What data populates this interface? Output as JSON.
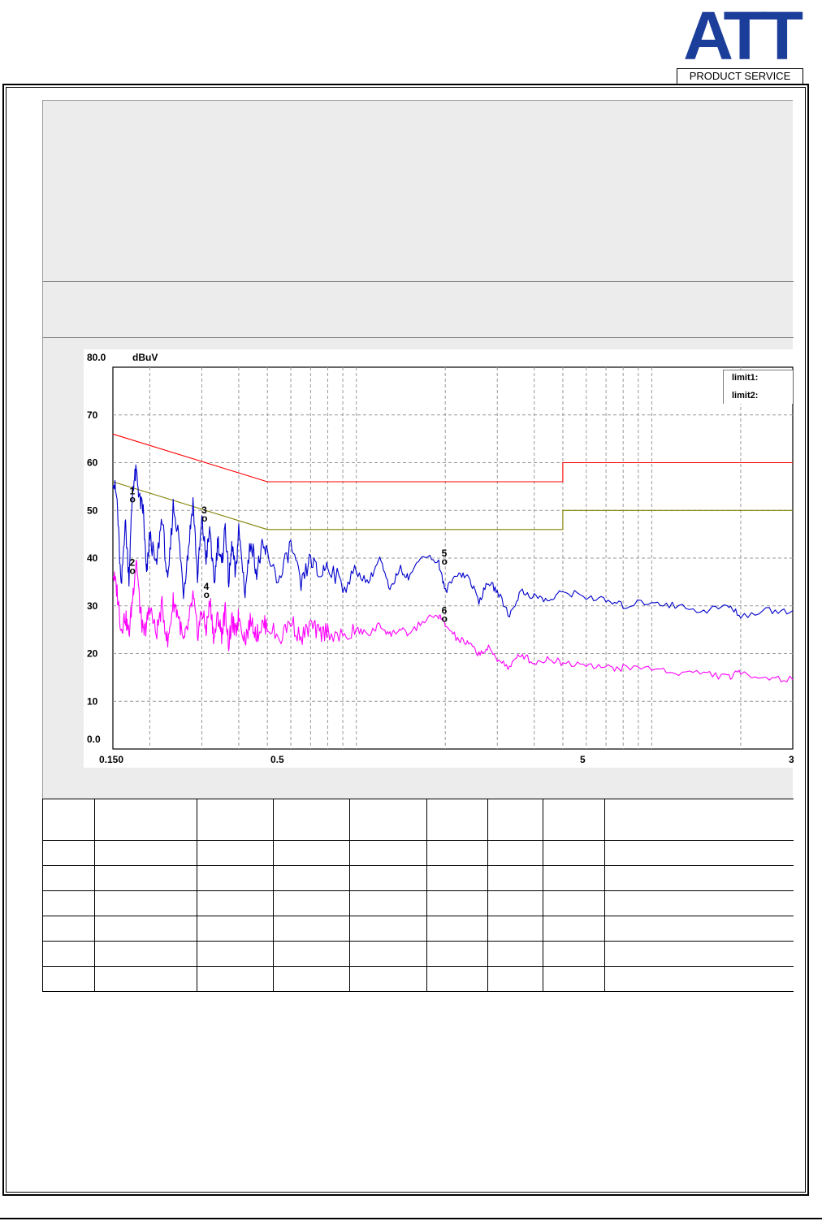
{
  "logo": {
    "mark": "ATT",
    "subtitle": "PRODUCT SERVICE"
  },
  "chart_data": {
    "type": "line",
    "xscale": "log",
    "x_tick_labels": [
      "0.150",
      "0.5",
      "5",
      "3"
    ],
    "y_top_label": "80.0",
    "y_unit": "dBuV",
    "y_tick_labels": [
      "70",
      "60",
      "50",
      "40",
      "30",
      "20",
      "10",
      "0.0"
    ],
    "ylim": [
      0,
      80
    ],
    "xlim": [
      0.15,
      30
    ],
    "grid": true,
    "legend_position": "top-right",
    "legend": [
      "limit1:",
      "limit2:"
    ],
    "series": [
      {
        "name": "limit1:",
        "color": "#ff0000",
        "x": [
          0.15,
          0.5,
          5,
          5,
          30
        ],
        "y": [
          66,
          56,
          56,
          60,
          60
        ]
      },
      {
        "name": "limit2:",
        "color": "#808000",
        "x": [
          0.15,
          0.5,
          5,
          5,
          30
        ],
        "y": [
          56,
          46,
          46,
          50,
          50
        ]
      },
      {
        "color": "#0000cc",
        "x": [
          0.15,
          0.155,
          0.16,
          0.165,
          0.17,
          0.175,
          0.18,
          0.185,
          0.19,
          0.195,
          0.2,
          0.21,
          0.22,
          0.23,
          0.24,
          0.25,
          0.26,
          0.27,
          0.28,
          0.29,
          0.3,
          0.31,
          0.32,
          0.33,
          0.34,
          0.35,
          0.36,
          0.37,
          0.38,
          0.39,
          0.4,
          0.42,
          0.44,
          0.46,
          0.48,
          0.5,
          0.55,
          0.6,
          0.65,
          0.7,
          0.75,
          0.8,
          0.9,
          1.0,
          1.1,
          1.2,
          1.3,
          1.4,
          1.5,
          1.7,
          1.9,
          2.0,
          2.2,
          2.4,
          2.6,
          2.8,
          3.0,
          3.3,
          3.6,
          4.0,
          4.5,
          5.0,
          6,
          7,
          8,
          10,
          12,
          15,
          18,
          20,
          25,
          30
        ],
        "y": [
          57,
          52,
          33,
          48,
          36,
          55,
          58,
          52,
          50,
          36,
          45,
          38,
          49,
          34,
          51,
          45,
          33,
          42,
          52,
          36,
          48,
          40,
          46,
          34,
          44,
          38,
          47,
          35,
          43,
          36,
          46,
          33,
          44,
          37,
          42,
          41,
          35,
          43,
          34,
          40,
          36,
          39,
          34,
          37,
          35,
          40,
          33,
          38,
          36,
          41,
          39,
          33,
          37,
          36,
          31,
          35,
          33,
          28,
          33,
          32,
          31,
          33,
          32,
          31,
          30,
          31,
          30,
          29,
          30,
          28,
          29,
          29
        ]
      },
      {
        "color": "#ff00ff",
        "x": [
          0.15,
          0.155,
          0.16,
          0.165,
          0.17,
          0.175,
          0.18,
          0.185,
          0.19,
          0.195,
          0.2,
          0.21,
          0.22,
          0.23,
          0.24,
          0.25,
          0.26,
          0.27,
          0.28,
          0.29,
          0.3,
          0.31,
          0.32,
          0.33,
          0.34,
          0.35,
          0.36,
          0.37,
          0.38,
          0.39,
          0.4,
          0.42,
          0.44,
          0.46,
          0.48,
          0.5,
          0.55,
          0.6,
          0.65,
          0.7,
          0.75,
          0.8,
          0.9,
          1.0,
          1.1,
          1.2,
          1.3,
          1.4,
          1.5,
          1.7,
          1.9,
          2.0,
          2.2,
          2.4,
          2.6,
          2.8,
          3.0,
          3.3,
          3.6,
          4.0,
          4.5,
          5.0,
          6,
          7,
          8,
          10,
          12,
          15,
          18,
          20,
          25,
          30
        ],
        "y": [
          37,
          33,
          25,
          28,
          24,
          32,
          40,
          30,
          24,
          26,
          30,
          24,
          30,
          22,
          31,
          28,
          22,
          26,
          32,
          24,
          29,
          25,
          31,
          23,
          28,
          24,
          29,
          22,
          27,
          24,
          28,
          23,
          27,
          24,
          26,
          26,
          23,
          27,
          23,
          26,
          24,
          25,
          23,
          25,
          24,
          26,
          24,
          25,
          24,
          27,
          28,
          26,
          23,
          22,
          20,
          21,
          19,
          17,
          20,
          18,
          19,
          18,
          18,
          17,
          17,
          17,
          16,
          16,
          15,
          16,
          15,
          14.5
        ]
      }
    ],
    "markers": [
      {
        "label": "1",
        "x": 0.174,
        "y": 52
      },
      {
        "label": "2",
        "x": 0.174,
        "y": 37
      },
      {
        "label": "3",
        "x": 0.305,
        "y": 48
      },
      {
        "label": "4",
        "x": 0.31,
        "y": 32
      },
      {
        "label": "5",
        "x": 1.98,
        "y": 39
      },
      {
        "label": "6",
        "x": 1.98,
        "y": 27
      }
    ]
  }
}
